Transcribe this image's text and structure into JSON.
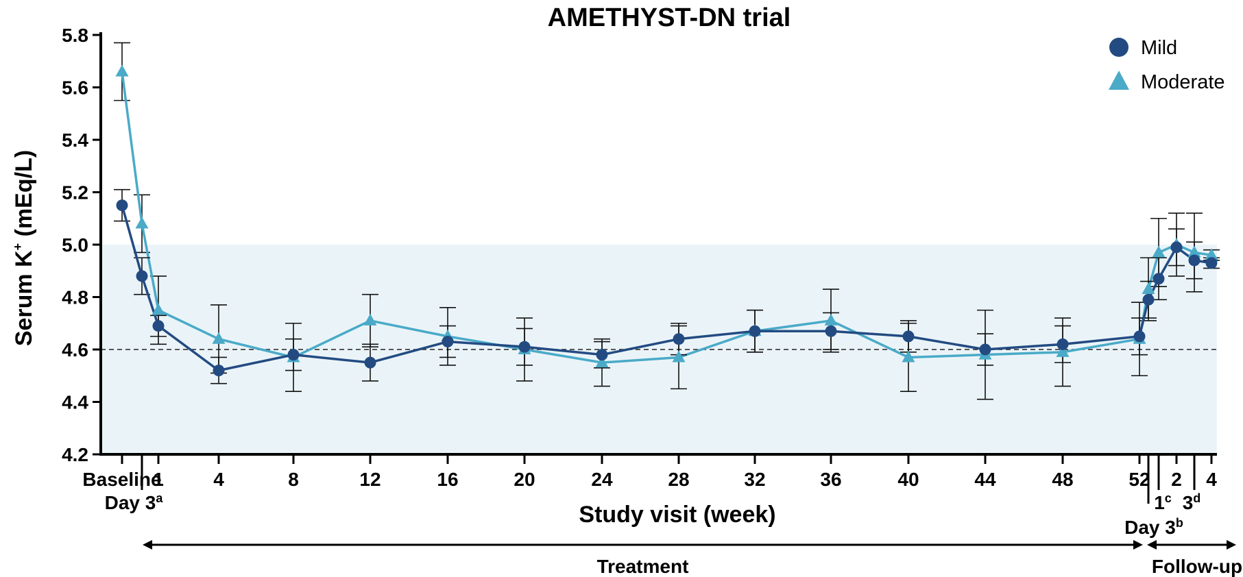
{
  "chart_data": {
    "type": "line",
    "title": "AMETHYST-DN trial",
    "ylabel": "Serum K",
    "ylabel_sup": "+",
    "ylabel_unit": " (mEq/L)",
    "xlabel": "Study visit (week)",
    "ylim": [
      4.2,
      5.8
    ],
    "yticks": [
      "4.2",
      "4.4",
      "4.6",
      "4.8",
      "5.0",
      "5.2",
      "5.4",
      "5.6",
      "5.8"
    ],
    "normal_range": [
      4.2,
      5.0
    ],
    "reference_line": 4.6,
    "x_labels": [
      {
        "text": "Baseline",
        "pos": 0
      },
      {
        "text": "1",
        "pos": 2
      },
      {
        "text": "4",
        "pos": 3
      },
      {
        "text": "8",
        "pos": 4
      },
      {
        "text": "12",
        "pos": 5
      },
      {
        "text": "16",
        "pos": 6
      },
      {
        "text": "20",
        "pos": 7
      },
      {
        "text": "24",
        "pos": 8
      },
      {
        "text": "28",
        "pos": 9
      },
      {
        "text": "32",
        "pos": 10
      },
      {
        "text": "36",
        "pos": 11
      },
      {
        "text": "40",
        "pos": 12
      },
      {
        "text": "44",
        "pos": 13
      },
      {
        "text": "48",
        "pos": 14
      },
      {
        "text": "52",
        "pos": 15
      },
      {
        "text": "2",
        "pos": 18
      },
      {
        "text": "4",
        "pos": 20
      }
    ],
    "lower_labels": [
      {
        "text": "Day 3",
        "sup": "a",
        "pos": 1
      },
      {
        "text": "1",
        "sup": "c",
        "pos": 17
      },
      {
        "text": "3",
        "sup": "d",
        "pos": 19
      },
      {
        "text": "Day 3",
        "sup": "b",
        "pos": 16
      }
    ],
    "periods": [
      {
        "label": "Treatment",
        "from": 1,
        "to": 16
      },
      {
        "label": "Follow-up",
        "from": 16,
        "to": 20
      }
    ],
    "series": [
      {
        "name": "Mild",
        "marker": "circle",
        "color": "#234b82",
        "x": [
          0,
          1,
          2,
          3,
          4,
          5,
          6,
          7,
          8,
          9,
          10,
          11,
          12,
          13,
          14,
          15,
          16,
          17,
          18,
          19,
          20
        ],
        "y": [
          5.15,
          4.88,
          4.69,
          4.52,
          4.58,
          4.55,
          4.63,
          4.61,
          4.58,
          4.64,
          4.67,
          4.67,
          4.65,
          4.6,
          4.62,
          4.65,
          4.79,
          4.87,
          4.99,
          4.94,
          4.93
        ],
        "err": [
          0.06,
          0.07,
          0.04,
          0.05,
          0.06,
          0.07,
          0.06,
          0.07,
          0.05,
          0.06,
          0.08,
          0.07,
          0.06,
          0.06,
          0.07,
          0.07,
          0.07,
          0.08,
          0.07,
          0.07,
          0.02
        ]
      },
      {
        "name": "Moderate",
        "marker": "triangle",
        "color": "#4aaac8",
        "x": [
          0,
          1,
          2,
          3,
          4,
          5,
          6,
          7,
          8,
          9,
          10,
          11,
          12,
          13,
          14,
          15,
          16,
          17,
          18,
          19,
          20
        ],
        "y": [
          5.66,
          5.08,
          4.75,
          4.64,
          4.57,
          4.71,
          4.65,
          4.6,
          4.55,
          4.57,
          4.67,
          4.71,
          4.57,
          4.58,
          4.59,
          4.64,
          4.83,
          4.97,
          5.0,
          4.97,
          4.96
        ],
        "err": [
          0.11,
          0.11,
          0.13,
          0.13,
          0.13,
          0.1,
          0.11,
          0.12,
          0.09,
          0.12,
          0.08,
          0.12,
          0.13,
          0.17,
          0.13,
          0.14,
          0.12,
          0.13,
          0.12,
          0.15,
          0.02
        ]
      }
    ],
    "legend_position": "top-right"
  },
  "colors": {
    "normal_band": "#eaf4f8",
    "axis": "#000000"
  }
}
